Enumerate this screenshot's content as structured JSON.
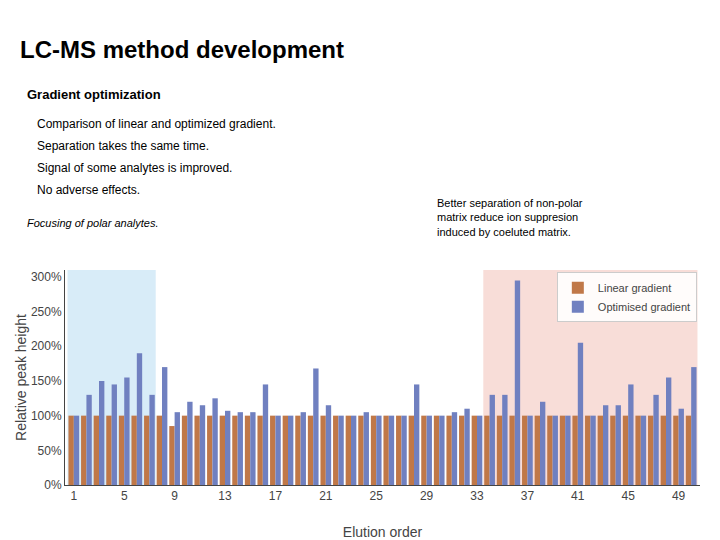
{
  "chart_data": {
    "type": "bar",
    "title": "LC-MS method development",
    "subtitle": "Gradient optimization",
    "annotations": [
      "Comparison of linear and optimized gradient.",
      "Separation takes the same time.",
      "Signal of some analytes is improved.",
      "No adverse effects.",
      "Focusing of polar analytes.",
      "Better separation of non-polar\nmatrix reduce ion suppresion\ninduced by coeluted matrix."
    ],
    "x_label": "Elution order",
    "y_label": "Relative peak height",
    "x": [
      1,
      2,
      3,
      4,
      5,
      6,
      7,
      8,
      9,
      10,
      11,
      12,
      13,
      14,
      15,
      16,
      17,
      18,
      19,
      20,
      21,
      22,
      23,
      24,
      25,
      26,
      27,
      28,
      29,
      30,
      31,
      32,
      33,
      34,
      35,
      36,
      37,
      38,
      39,
      40,
      41,
      42,
      43,
      44,
      45,
      46,
      47,
      48,
      49,
      50
    ],
    "series": [
      {
        "name": "Linear gradient",
        "color": "#c07848",
        "values": [
          100,
          100,
          100,
          100,
          100,
          100,
          100,
          100,
          85,
          100,
          100,
          100,
          100,
          100,
          100,
          100,
          100,
          100,
          100,
          100,
          100,
          100,
          100,
          100,
          100,
          100,
          100,
          100,
          100,
          100,
          100,
          100,
          100,
          100,
          100,
          100,
          100,
          100,
          100,
          100,
          100,
          100,
          100,
          100,
          100,
          100,
          100,
          100,
          100,
          100
        ]
      },
      {
        "name": "Optimised gradient",
        "color": "#7080c0",
        "values": [
          100,
          130,
          150,
          145,
          155,
          190,
          130,
          170,
          105,
          120,
          115,
          125,
          107,
          105,
          105,
          145,
          100,
          100,
          105,
          168,
          115,
          100,
          100,
          105,
          100,
          100,
          100,
          145,
          100,
          100,
          105,
          110,
          100,
          130,
          130,
          295,
          100,
          120,
          100,
          100,
          205,
          100,
          115,
          115,
          145,
          100,
          130,
          155,
          110,
          170
        ]
      }
    ],
    "regions": [
      {
        "x": [
          0.5,
          7.5
        ],
        "color": "#d8ecf8"
      },
      {
        "x": [
          33.5,
          50.5
        ],
        "color": "#f8ddd8"
      }
    ],
    "xlim": [
      0.3,
      50.7
    ],
    "xticks": [
      1,
      5,
      9,
      13,
      17,
      21,
      25,
      29,
      33,
      37,
      41,
      45,
      49
    ],
    "ylim": [
      0,
      310
    ],
    "yticks": [
      {
        "value": 0,
        "label": "0%"
      },
      {
        "value": 50,
        "label": "50%"
      },
      {
        "value": 100,
        "label": "100%"
      },
      {
        "value": 150,
        "label": "150%"
      },
      {
        "value": 200,
        "label": "200%"
      },
      {
        "value": 250,
        "label": "250%"
      },
      {
        "value": 300,
        "label": "300%"
      }
    ],
    "grid": false,
    "legend": "upper right"
  }
}
